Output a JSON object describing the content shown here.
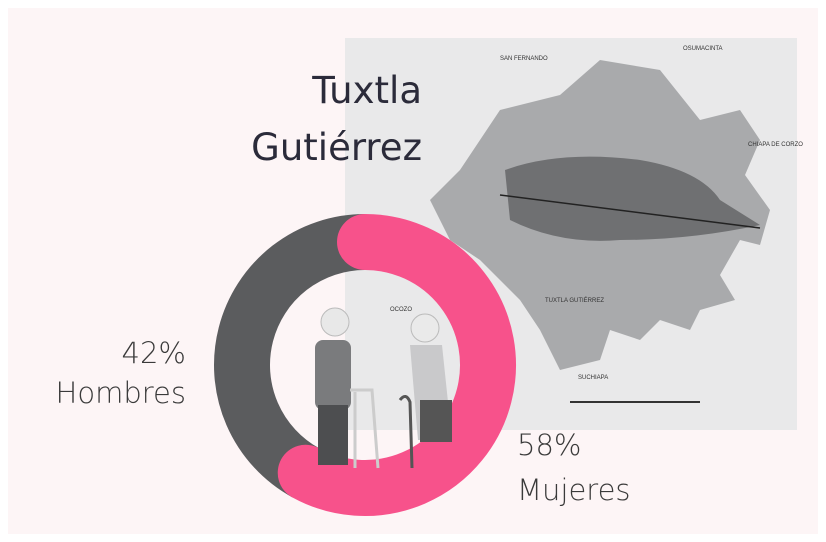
{
  "chart_data": {
    "type": "donut",
    "title": [
      "Tuxtla",
      "Gutiérrez"
    ],
    "categories": [
      "Hombres",
      "Mujeres"
    ],
    "values": [
      42,
      58
    ],
    "value_labels": [
      "42%",
      "58%"
    ],
    "colors": [
      "#5b5c5e",
      "#f7528b"
    ]
  },
  "map_labels": [
    "SAN FERNANDO",
    "OSUMACINTA",
    "CHIAPA DE CORZO",
    "OCOZO",
    "TUXTLA GUTIÉRREZ",
    "SUCHIAPA"
  ]
}
